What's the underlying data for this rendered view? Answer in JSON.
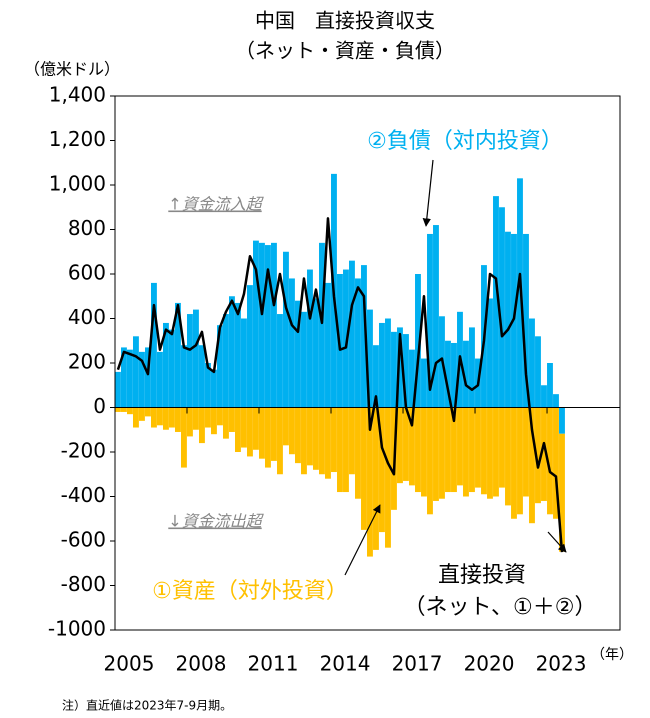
{
  "chart_data": {
    "type": "bar",
    "title": "中国　直接投資収支",
    "subtitle": "（ネット・資産・負債）",
    "y_label": "（億米ドル）",
    "x_label": "（年）",
    "note": "注）直近値は2023年7-9月期。",
    "annotations": [
      "↑資金流入超",
      "↓資金流出超",
      "（ネット、①＋②）"
    ],
    "x": [
      2005,
      2005.25,
      2005.5,
      2005.75,
      2006,
      2006.25,
      2006.5,
      2006.75,
      2007,
      2007.25,
      2007.5,
      2007.75,
      2008,
      2008.25,
      2008.5,
      2008.75,
      2009,
      2009.25,
      2009.5,
      2009.75,
      2010,
      2010.25,
      2010.5,
      2010.75,
      2011,
      2011.25,
      2011.5,
      2011.75,
      2012,
      2012.25,
      2012.5,
      2012.75,
      2013,
      2013.25,
      2013.5,
      2013.75,
      2014,
      2014.25,
      2014.5,
      2014.75,
      2015,
      2015.25,
      2015.5,
      2015.75,
      2016,
      2016.25,
      2016.5,
      2016.75,
      2017,
      2017.25,
      2017.5,
      2017.75,
      2018,
      2018.25,
      2018.5,
      2018.75,
      2019,
      2019.25,
      2019.5,
      2019.75,
      2020,
      2020.25,
      2020.5,
      2020.75,
      2021,
      2021.25,
      2021.5,
      2021.75,
      2022,
      2022.25,
      2022.5,
      2022.75,
      2023,
      2023.25,
      2023.5
    ],
    "series": [
      {
        "name": "②負債（対内投資）",
        "color": "#00b0f0",
        "values": [
          160,
          270,
          260,
          320,
          250,
          270,
          560,
          250,
          380,
          350,
          470,
          280,
          420,
          440,
          280,
          200,
          170,
          370,
          420,
          500,
          470,
          400,
          550,
          750,
          740,
          730,
          740,
          420,
          700,
          580,
          480,
          430,
          620,
          490,
          740,
          560,
          1050,
          600,
          620,
          660,
          580,
          640,
          440,
          280,
          380,
          400,
          340,
          360,
          330,
          260,
          600,
          220,
          780,
          820,
          410,
          300,
          290,
          430,
          300,
          360,
          220,
          640,
          490,
          950,
          900,
          790,
          780,
          1030,
          780,
          400,
          320,
          100,
          200,
          60,
          -118
        ]
      },
      {
        "name": "①資産（対外投資）",
        "color": "#ffc000",
        "values": [
          -20,
          -20,
          -30,
          -90,
          -60,
          -40,
          -90,
          -80,
          -100,
          -90,
          -110,
          -270,
          -130,
          -100,
          -160,
          -90,
          -120,
          -80,
          -140,
          -110,
          -200,
          -180,
          -220,
          -190,
          -230,
          -270,
          -240,
          -300,
          -170,
          -210,
          -250,
          -300,
          -260,
          -280,
          -300,
          -320,
          -290,
          -380,
          -380,
          -300,
          -410,
          -550,
          -670,
          -640,
          -560,
          -630,
          -460,
          -340,
          -330,
          -350,
          -380,
          -400,
          -480,
          -420,
          -410,
          -380,
          -380,
          -350,
          -400,
          -380,
          -360,
          -390,
          -410,
          -400,
          -360,
          -440,
          -500,
          -480,
          -400,
          -520,
          -430,
          -420,
          -480,
          -500,
          -530
        ]
      },
      {
        "name": "直接投資",
        "color": "#000000",
        "type": "line",
        "values": [
          170,
          250,
          240,
          230,
          210,
          150,
          460,
          260,
          350,
          330,
          460,
          270,
          260,
          280,
          340,
          180,
          160,
          360,
          430,
          480,
          420,
          510,
          680,
          620,
          420,
          620,
          460,
          600,
          450,
          370,
          340,
          580,
          400,
          530,
          380,
          850,
          500,
          260,
          270,
          460,
          540,
          500,
          -100,
          50,
          -180,
          -250,
          -300,
          330,
          0,
          -80,
          210,
          500,
          80,
          200,
          220,
          80,
          -60,
          230,
          100,
          80,
          100,
          300,
          600,
          580,
          320,
          350,
          400,
          600,
          150,
          -100,
          -270,
          -160,
          -290,
          -310,
          -650
        ]
      }
    ],
    "xlim": [
      2005,
      2026.04
    ],
    "xticks": [
      2005,
      2008,
      2011,
      2014,
      2017,
      2020,
      2023
    ],
    "ylim": [
      -1000,
      1400
    ],
    "yticks": [
      -1000,
      -800,
      -600,
      -400,
      -200,
      0,
      200,
      400,
      600,
      800,
      {
        "value": 1000,
        "label": "1,000"
      },
      {
        "value": 1200,
        "label": "1,200"
      },
      {
        "value": 1400,
        "label": "1,400"
      }
    ],
    "grid": false
  }
}
